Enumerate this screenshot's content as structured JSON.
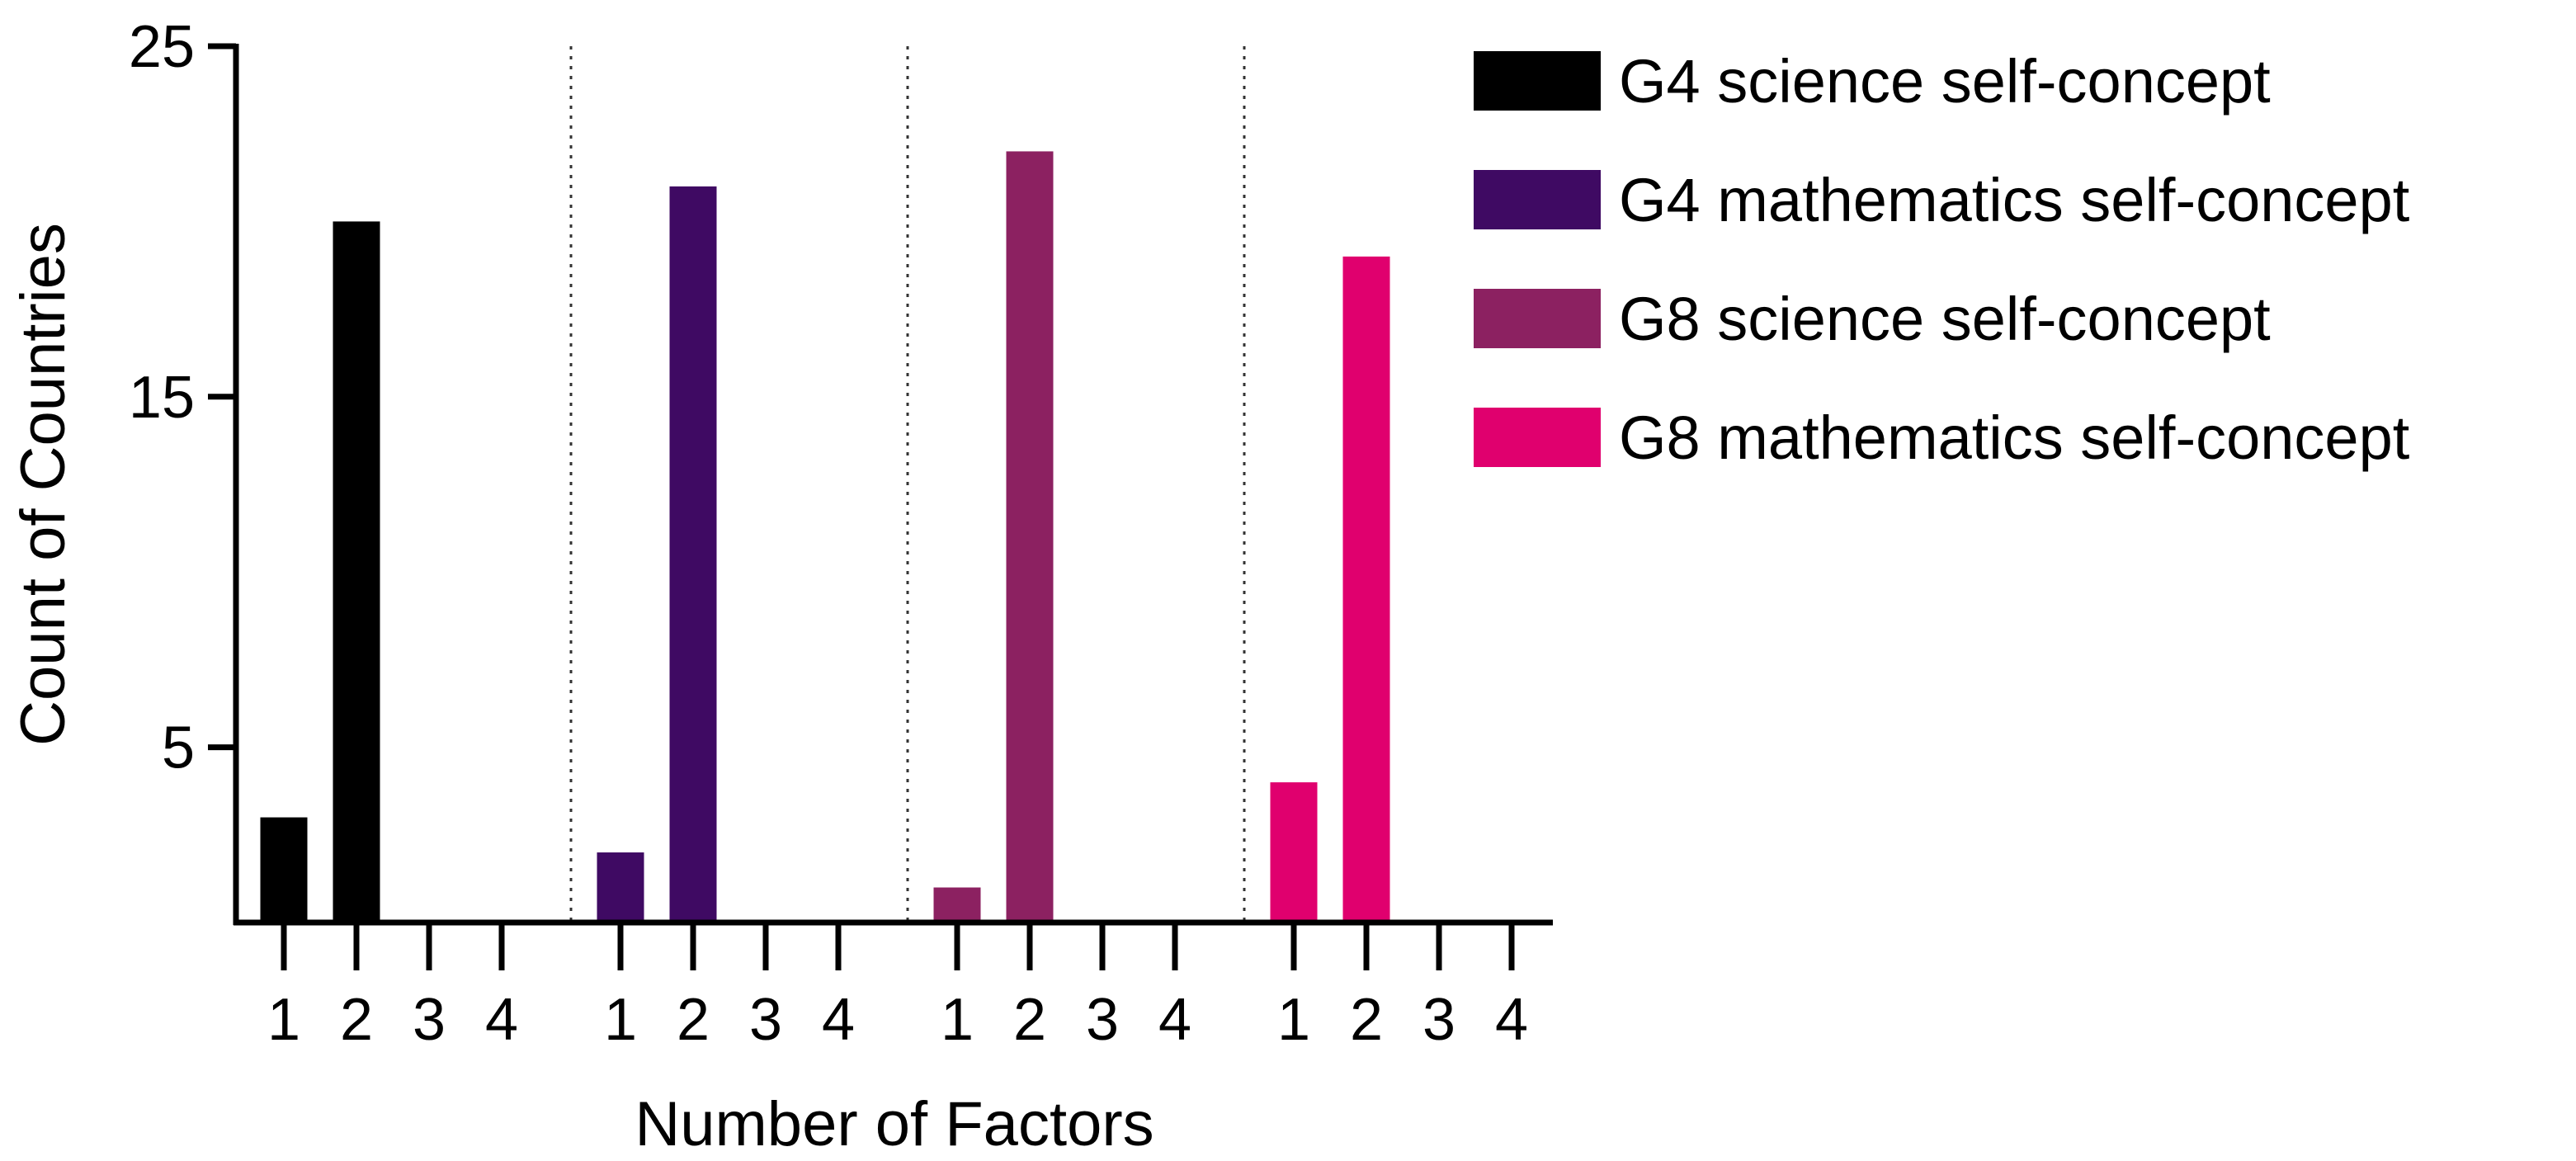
{
  "chart_data": {
    "type": "bar",
    "xlabel": "Number of Factors",
    "ylabel": "Count of Countries",
    "ylim": [
      0,
      25
    ],
    "yticks": [
      5,
      15,
      25
    ],
    "legend_position": "right",
    "series": [
      {
        "name": "G4 science self-concept",
        "color": "#000000",
        "categories": [
          "1",
          "2",
          "3",
          "4"
        ],
        "values": [
          3,
          20,
          0,
          0
        ]
      },
      {
        "name": "G4 mathematics self-concept",
        "color": "#3f0a63",
        "categories": [
          "1",
          "2",
          "3",
          "4"
        ],
        "values": [
          2,
          21,
          0,
          0
        ]
      },
      {
        "name": "G8 science self-concept",
        "color": "#8c2161",
        "categories": [
          "1",
          "2",
          "3",
          "4"
        ],
        "values": [
          1,
          22,
          0,
          0
        ]
      },
      {
        "name": "G8 mathematics self-concept",
        "color": "#e0006e",
        "categories": [
          "1",
          "2",
          "3",
          "4"
        ],
        "values": [
          4,
          19,
          0,
          0
        ]
      }
    ]
  }
}
